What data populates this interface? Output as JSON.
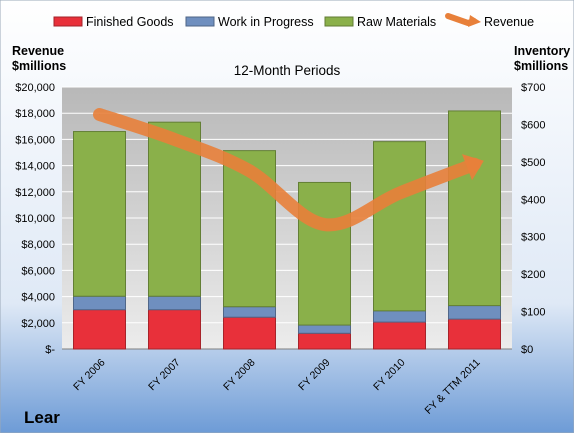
{
  "chart_data": {
    "type": "bar",
    "title": "12-Month Periods",
    "company": "Lear",
    "left_axis": {
      "label_line1": "Revenue",
      "label_line2": "$millions",
      "range": [
        0,
        20000
      ],
      "ticks": [
        "$-",
        "$2,000",
        "$4,000",
        "$6,000",
        "$8,000",
        "$10,000",
        "$12,000",
        "$14,000",
        "$16,000",
        "$18,000",
        "$20,000"
      ]
    },
    "right_axis": {
      "label_line1": "Inventory",
      "label_line2": "$millions",
      "range": [
        0,
        700
      ],
      "ticks": [
        "$0",
        "$100",
        "$200",
        "$300",
        "$400",
        "$500",
        "$600",
        "$700"
      ]
    },
    "categories": [
      "FY 2006",
      "FY 2007",
      "FY 2008",
      "FY 2009",
      "FY 2010",
      "FY & TTM 2011"
    ],
    "series": [
      {
        "name": "Finished Goods",
        "kind": "stacked-bar",
        "axis": "right",
        "color": "#e8303a",
        "values": [
          105,
          105,
          85,
          42,
          72,
          80
        ]
      },
      {
        "name": "Work in Progress",
        "kind": "stacked-bar",
        "axis": "right",
        "color": "#6f8fbf",
        "values": [
          36,
          36,
          28,
          22,
          30,
          36
        ]
      },
      {
        "name": "Raw Materials",
        "kind": "stacked-bar",
        "axis": "right",
        "color": "#8ab04a",
        "values": [
          440,
          465,
          417,
          381,
          452,
          520
        ]
      },
      {
        "name": "Revenue",
        "kind": "line",
        "axis": "left",
        "color": "#e8803a",
        "values": [
          17900,
          16000,
          13600,
          9500,
          11900,
          14100
        ]
      }
    ],
    "grid": true,
    "legend": "top"
  }
}
